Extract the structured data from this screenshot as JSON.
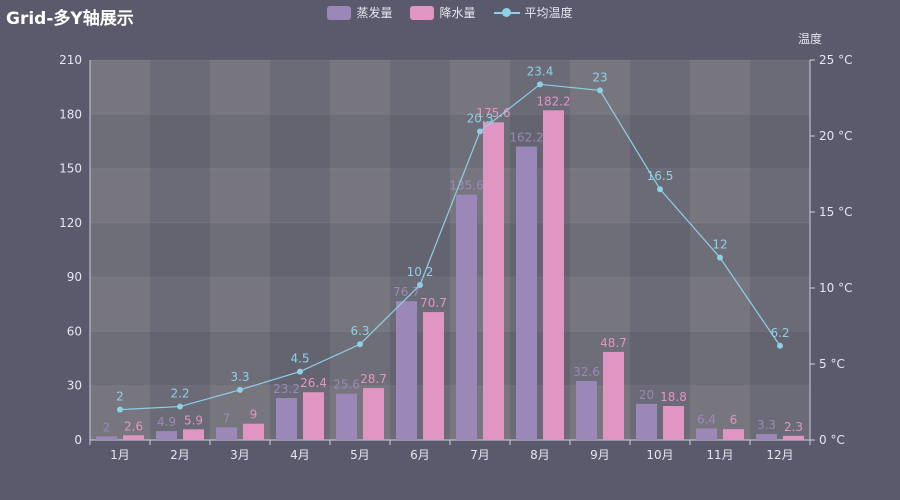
{
  "title": "Grid-多Y轴展示",
  "legend": [
    {
      "name": "蒸发量",
      "color": "#9b88b8",
      "type": "bar"
    },
    {
      "name": "降水量",
      "color": "#e195c3",
      "type": "bar"
    },
    {
      "name": "平均温度",
      "color": "#8ed0e6",
      "type": "line"
    }
  ],
  "chart_data": {
    "type": "bar",
    "categories": [
      "1月",
      "2月",
      "3月",
      "4月",
      "5月",
      "6月",
      "7月",
      "8月",
      "9月",
      "10月",
      "11月",
      "12月"
    ],
    "series": [
      {
        "name": "蒸发量",
        "type": "bar",
        "axis": "left",
        "color": "#9b88b8",
        "values": [
          2,
          4.9,
          7,
          23.2,
          25.6,
          76.7,
          135.6,
          162.2,
          32.6,
          20,
          6.4,
          3.3
        ]
      },
      {
        "name": "降水量",
        "type": "bar",
        "axis": "left",
        "color": "#e195c3",
        "values": [
          2.6,
          5.9,
          9,
          26.4,
          28.7,
          70.7,
          175.6,
          182.2,
          48.7,
          18.8,
          6,
          2.3
        ]
      },
      {
        "name": "平均温度",
        "type": "line",
        "axis": "right",
        "color": "#8ed0e6",
        "values": [
          2,
          2.2,
          3.3,
          4.5,
          6.3,
          10.2,
          20.3,
          23.4,
          23,
          16.5,
          12,
          6.2
        ]
      }
    ],
    "y_left": {
      "min": 0,
      "max": 210,
      "ticks": [
        0,
        30,
        60,
        90,
        120,
        150,
        180,
        210
      ]
    },
    "y_right": {
      "label": "温度",
      "min": 0,
      "max": 25,
      "ticks": [
        "0 °C",
        "5 °C",
        "10 °C",
        "15 °C",
        "20 °C",
        "25 °C"
      ]
    },
    "grid": true
  }
}
